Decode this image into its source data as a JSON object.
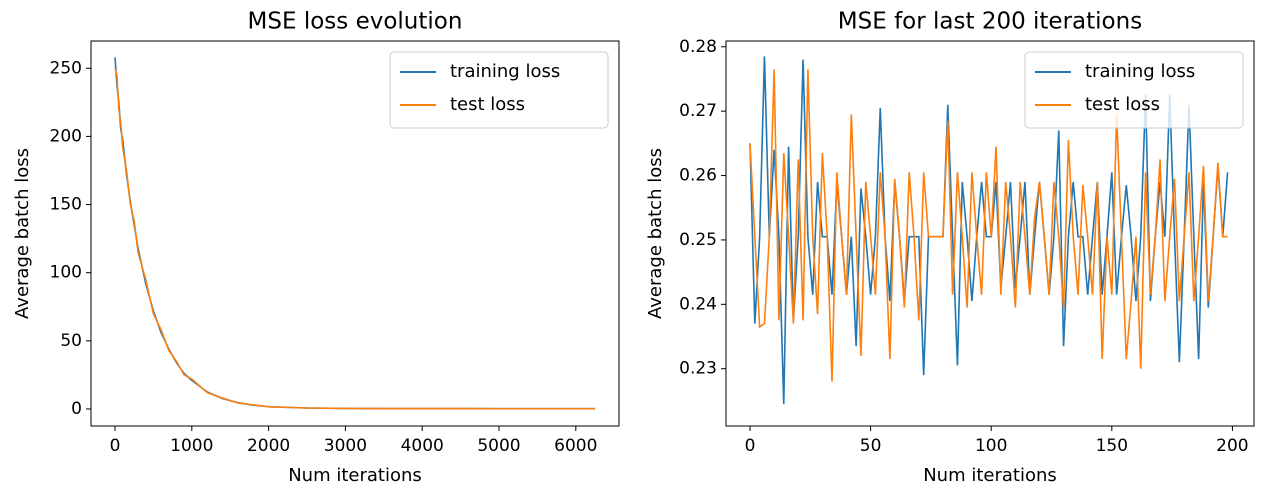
{
  "chart_data": [
    {
      "type": "line",
      "title": "MSE loss evolution",
      "xlabel": "Num iterations",
      "ylabel": "Average batch loss",
      "x": [
        0,
        25,
        50,
        75,
        100,
        150,
        200,
        250,
        300,
        400,
        500,
        600,
        700,
        800,
        900,
        1000,
        1200,
        1400,
        1600,
        1800,
        2000,
        2500,
        3000,
        3500,
        4000,
        4500,
        5000,
        5500,
        6000,
        6250
      ],
      "series": [
        {
          "name": "training loss",
          "color": "#1f77b4",
          "values": [
            258,
            238,
            225,
            205,
            198,
            172,
            152,
            135,
            118,
            92,
            72,
            56,
            44,
            34,
            26,
            21,
            12.5,
            7.6,
            4.6,
            2.8,
            1.7,
            0.7,
            0.4,
            0.3,
            0.27,
            0.26,
            0.25,
            0.25,
            0.25,
            0.25
          ]
        },
        {
          "name": "test loss",
          "color": "#ff7f0e",
          "values": [
            250,
            245,
            220,
            210,
            192,
            175,
            150,
            138,
            115,
            95,
            70,
            58,
            43,
            35,
            25,
            22,
            12,
            8,
            4.4,
            3,
            1.6,
            0.7,
            0.4,
            0.3,
            0.27,
            0.26,
            0.25,
            0.25,
            0.25,
            0.25
          ]
        }
      ],
      "xlim": [
        -312.5,
        6562.5
      ],
      "xticks": [
        0,
        1000,
        2000,
        3000,
        4000,
        5000,
        6000
      ],
      "ylim": [
        -12.5,
        270
      ],
      "yticks": [
        0,
        50,
        100,
        150,
        200,
        250
      ],
      "legend": "upper right"
    },
    {
      "type": "line",
      "title": "MSE for last 200 iterations",
      "xlabel": "Num iterations",
      "ylabel": "Average batch loss",
      "x": [
        0,
        2,
        4,
        6,
        8,
        10,
        12,
        14,
        16,
        18,
        20,
        22,
        24,
        26,
        28,
        30,
        32,
        34,
        36,
        38,
        40,
        42,
        44,
        46,
        48,
        50,
        52,
        54,
        56,
        58,
        60,
        62,
        64,
        66,
        68,
        70,
        72,
        74,
        76,
        78,
        80,
        82,
        84,
        86,
        88,
        90,
        92,
        94,
        96,
        98,
        100,
        102,
        104,
        106,
        108,
        110,
        112,
        114,
        116,
        118,
        120,
        122,
        124,
        126,
        128,
        130,
        132,
        134,
        136,
        138,
        140,
        142,
        144,
        146,
        148,
        150,
        152,
        154,
        156,
        158,
        160,
        162,
        164,
        166,
        168,
        170,
        172,
        174,
        176,
        178,
        180,
        182,
        184,
        186,
        188,
        190,
        192,
        194,
        196,
        198
      ],
      "series": [
        {
          "name": "training loss",
          "color": "#1f77b4",
          "values": [
            0.265,
            0.237,
            0.2505,
            0.2785,
            0.2505,
            0.264,
            0.2505,
            0.2245,
            0.2645,
            0.2375,
            0.2505,
            0.278,
            0.2505,
            0.2415,
            0.259,
            0.2505,
            0.2505,
            0.2415,
            0.259,
            0.2505,
            0.2415,
            0.2505,
            0.2335,
            0.258,
            0.2505,
            0.2415,
            0.2505,
            0.2705,
            0.2505,
            0.2405,
            0.259,
            0.2505,
            0.2405,
            0.2505,
            0.2505,
            0.2505,
            0.229,
            0.2505,
            0.2505,
            0.2505,
            0.2505,
            0.271,
            0.2505,
            0.2305,
            0.259,
            0.2505,
            0.2405,
            0.2505,
            0.259,
            0.2505,
            0.2505,
            0.259,
            0.2425,
            0.2505,
            0.259,
            0.2425,
            0.2505,
            0.259,
            0.2415,
            0.2505,
            0.259,
            0.2505,
            0.2415,
            0.2505,
            0.267,
            0.2335,
            0.2505,
            0.259,
            0.2505,
            0.2505,
            0.2415,
            0.2505,
            0.259,
            0.2415,
            0.2505,
            0.2605,
            0.2415,
            0.2505,
            0.2585,
            0.2505,
            0.2405,
            0.2505,
            0.2725,
            0.2405,
            0.2505,
            0.259,
            0.2505,
            0.2725,
            0.2505,
            0.231,
            0.2505,
            0.271,
            0.2505,
            0.2315,
            0.259,
            0.2395,
            0.2505,
            0.2615,
            0.2505,
            0.2605
          ]
        },
        {
          "name": "test loss",
          "color": "#ff7f0e",
          "values": [
            0.265,
            0.2505,
            0.2365,
            0.237,
            0.2505,
            0.2765,
            0.2375,
            0.2635,
            0.2505,
            0.237,
            0.2625,
            0.2375,
            0.2765,
            0.2505,
            0.2385,
            0.2635,
            0.2505,
            0.228,
            0.2605,
            0.2505,
            0.2415,
            0.2695,
            0.2505,
            0.232,
            0.259,
            0.2505,
            0.2415,
            0.2605,
            0.2505,
            0.2315,
            0.2595,
            0.2505,
            0.2395,
            0.2605,
            0.2505,
            0.2375,
            0.2605,
            0.2505,
            0.2505,
            0.2505,
            0.2505,
            0.2685,
            0.2415,
            0.2605,
            0.2505,
            0.2395,
            0.2605,
            0.2505,
            0.2415,
            0.2605,
            0.2505,
            0.2645,
            0.2415,
            0.259,
            0.2505,
            0.2395,
            0.259,
            0.2505,
            0.2415,
            0.2535,
            0.259,
            0.2505,
            0.2415,
            0.259,
            0.2505,
            0.2395,
            0.2655,
            0.2505,
            0.2415,
            0.2585,
            0.2505,
            0.2415,
            0.259,
            0.2315,
            0.2505,
            0.2415,
            0.2695,
            0.2505,
            0.2315,
            0.2405,
            0.2505,
            0.23,
            0.2605,
            0.2415,
            0.2505,
            0.2625,
            0.2405,
            0.2505,
            0.2595,
            0.2405,
            0.2505,
            0.2605,
            0.2405,
            0.2505,
            0.2615,
            0.2405,
            0.2505,
            0.262,
            0.2505,
            0.2505
          ]
        }
      ],
      "xlim": [
        -9.95,
        208.95
      ],
      "xticks": [
        0,
        50,
        100,
        150,
        200
      ],
      "ylim": [
        0.2211,
        0.2809
      ],
      "yticks": [
        0.23,
        0.24,
        0.25,
        0.26,
        0.27,
        0.28
      ],
      "legend": "upper right"
    }
  ]
}
